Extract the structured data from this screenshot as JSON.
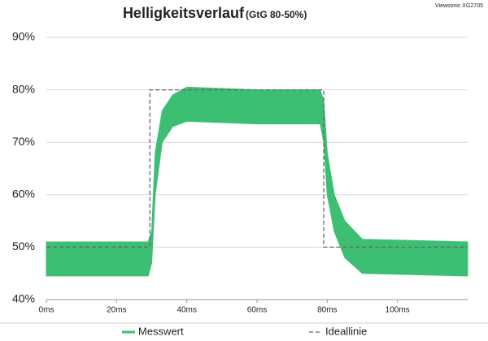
{
  "chart_data": {
    "type": "range-line",
    "title": "Helligkeitsverlauf",
    "subtitle": "(GtG 80-50%)",
    "annotation": "Viewsonic XG2705",
    "xlim": [
      0,
      120
    ],
    "ylim": [
      40,
      90
    ],
    "xticks": [
      {
        "value": 0,
        "label": "0ms"
      },
      {
        "value": 20,
        "label": "20ms"
      },
      {
        "value": 40,
        "label": "40ms"
      },
      {
        "value": 60,
        "label": "60ms"
      },
      {
        "value": 80,
        "label": "80ms"
      },
      {
        "value": 100,
        "label": "100ms"
      }
    ],
    "yticks": [
      {
        "value": 40,
        "label": "40%"
      },
      {
        "value": 50,
        "label": "50%"
      },
      {
        "value": 60,
        "label": "60%"
      },
      {
        "value": 70,
        "label": "70%"
      },
      {
        "value": 80,
        "label": "80%"
      },
      {
        "value": 90,
        "label": "90%"
      }
    ],
    "grid": true,
    "legend": "bottom",
    "series": [
      {
        "name": "Messwert",
        "color": "#3cbf73",
        "x": [
          0,
          29,
          30,
          31,
          33,
          36,
          40,
          60,
          78,
          79,
          80,
          82,
          85,
          90,
          120
        ],
        "low": [
          44.5,
          44.5,
          47,
          60,
          70,
          73,
          74,
          73.5,
          73.5,
          70,
          60,
          53,
          48,
          45,
          44.5
        ],
        "high": [
          51,
          51,
          53,
          68,
          76,
          79,
          80.5,
          80,
          80,
          78,
          68,
          60,
          55,
          51.5,
          51
        ]
      },
      {
        "name": "Ideallinie",
        "color": "#666666",
        "dashed": true,
        "x": [
          0,
          29.5,
          29.5,
          79,
          79,
          120
        ],
        "values": [
          50,
          50,
          80,
          80,
          50,
          50
        ]
      }
    ]
  }
}
